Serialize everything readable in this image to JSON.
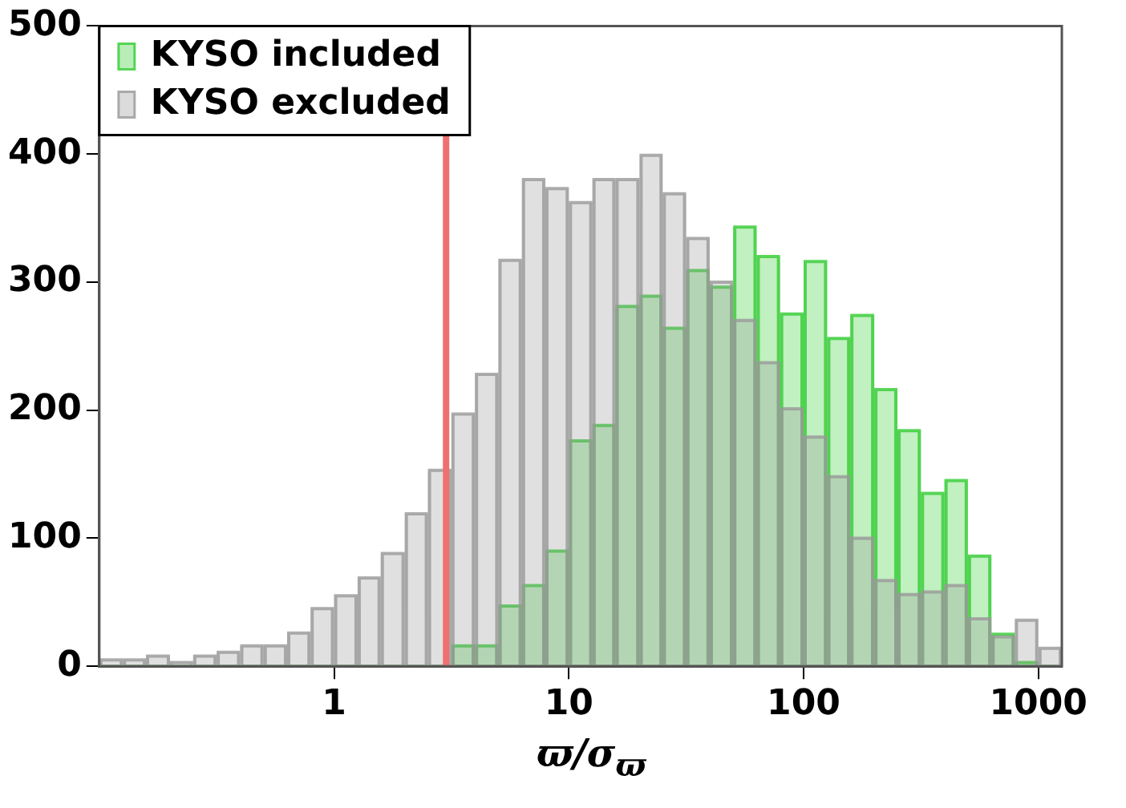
{
  "chart_data": {
    "type": "histogram",
    "xlabel": "ϖ/σ$_{ϖ}$",
    "log": "x",
    "bins": [
      0.1,
      0.126,
      0.158,
      0.2,
      0.251,
      0.316,
      0.398,
      0.501,
      0.631,
      0.794,
      1,
      1.26,
      1.58,
      2,
      2.51,
      3.16,
      3.98,
      5.01,
      6.31,
      7.94,
      10,
      12.6,
      15.8,
      20,
      25.1,
      31.6,
      39.8,
      50.1,
      63.1,
      79.4,
      100,
      126,
      158,
      200,
      251,
      316,
      398,
      501,
      631,
      794,
      1000,
      1259
    ],
    "series": [
      {
        "name": "KYSO included",
        "color": "#33cc33",
        "values": [
          0,
          0,
          0,
          0,
          0,
          0,
          0,
          0,
          0,
          0,
          0,
          0,
          0,
          0,
          0,
          16,
          16,
          47,
          63,
          90,
          176,
          188,
          281,
          289,
          264,
          309,
          296,
          343,
          320,
          275,
          316,
          256,
          274,
          216,
          184,
          135,
          145,
          86,
          25,
          3,
          0
        ]
      },
      {
        "name": "KYSO excluded",
        "color": "#999999",
        "values": [
          5,
          5,
          8,
          3,
          8,
          11,
          16,
          16,
          26,
          45,
          55,
          69,
          88,
          119,
          153,
          197,
          228,
          317,
          380,
          373,
          362,
          380,
          380,
          399,
          369,
          334,
          300,
          270,
          237,
          201,
          179,
          148,
          100,
          67,
          56,
          58,
          63,
          37,
          23,
          36,
          14
        ]
      }
    ],
    "xlim": [
      0.1,
      1259
    ],
    "xticks": [
      1,
      10,
      100,
      1000
    ],
    "ylim": [
      0,
      500
    ],
    "yticks": [
      0,
      100,
      200,
      300,
      400,
      500
    ],
    "ref_lines": [
      {
        "axis": "x",
        "value": 3,
        "color": "#f07070"
      }
    ],
    "legend": "top left",
    "grid": false
  }
}
